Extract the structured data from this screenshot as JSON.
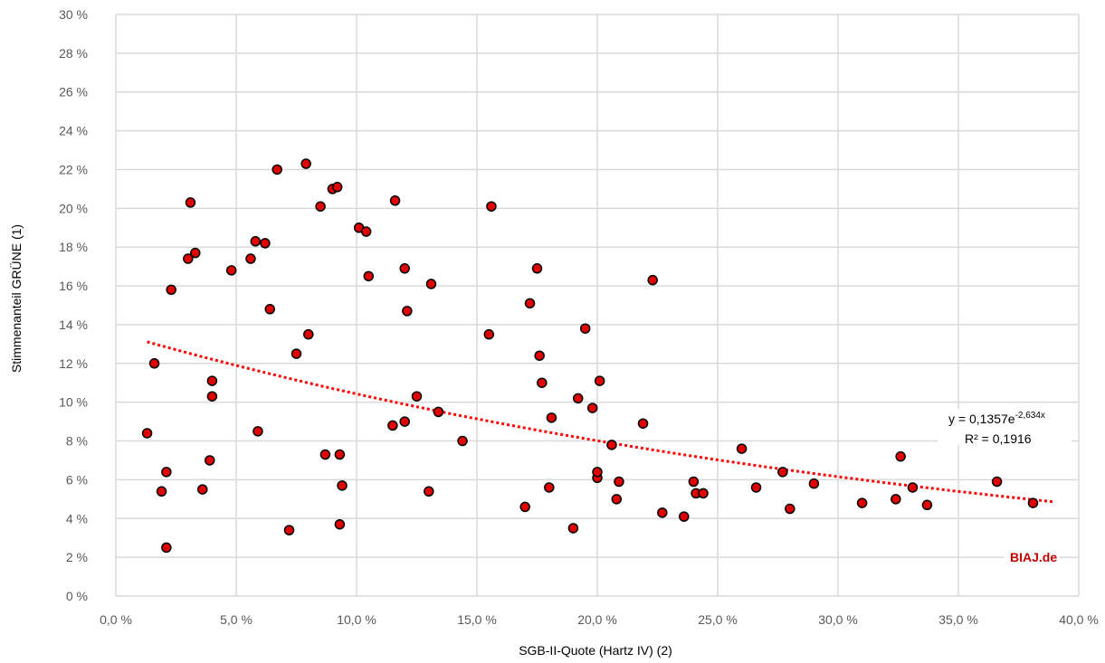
{
  "chart_data": {
    "type": "scatter",
    "title": "",
    "xlabel": "SGB-II-Quote (Hartz IV) (2)",
    "ylabel": "Stimmenanteil GRÜNE (1)",
    "xlim": [
      0,
      40
    ],
    "ylim": [
      0,
      30
    ],
    "x_ticks": [
      "0,0 %",
      "5,0 %",
      "10,0 %",
      "15,0 %",
      "20,0 %",
      "25,0 %",
      "30,0 %",
      "35,0 %",
      "40,0 %"
    ],
    "y_ticks": [
      "0 %",
      "2 %",
      "4 %",
      "6 %",
      "8 %",
      "10 %",
      "12 %",
      "14 %",
      "16 %",
      "18 %",
      "20 %",
      "22 %",
      "24 %",
      "26 %",
      "28 %",
      "30 %"
    ],
    "grid": true,
    "legend": "none",
    "marker_color": "#e00000",
    "marker_edge": "#000000",
    "trend_color": "#ff0000",
    "points": [
      [
        1.3,
        8.4
      ],
      [
        1.6,
        12.0
      ],
      [
        1.9,
        5.4
      ],
      [
        2.1,
        6.4
      ],
      [
        2.1,
        2.5
      ],
      [
        2.3,
        15.8
      ],
      [
        3.0,
        17.4
      ],
      [
        3.1,
        20.3
      ],
      [
        3.3,
        17.7
      ],
      [
        3.6,
        5.5
      ],
      [
        3.9,
        7.0
      ],
      [
        4.0,
        11.1
      ],
      [
        4.0,
        10.3
      ],
      [
        4.8,
        16.8
      ],
      [
        5.6,
        17.4
      ],
      [
        5.8,
        18.3
      ],
      [
        5.9,
        8.5
      ],
      [
        6.2,
        18.2
      ],
      [
        6.4,
        14.8
      ],
      [
        6.7,
        22.0
      ],
      [
        7.2,
        3.4
      ],
      [
        7.5,
        12.5
      ],
      [
        7.9,
        22.3
      ],
      [
        8.0,
        13.5
      ],
      [
        8.5,
        20.1
      ],
      [
        8.7,
        7.3
      ],
      [
        9.0,
        21.0
      ],
      [
        9.2,
        21.1
      ],
      [
        9.3,
        7.3
      ],
      [
        9.3,
        3.7
      ],
      [
        9.4,
        5.7
      ],
      [
        10.1,
        19.0
      ],
      [
        10.4,
        18.8
      ],
      [
        10.5,
        16.5
      ],
      [
        11.5,
        8.8
      ],
      [
        11.6,
        20.4
      ],
      [
        12.0,
        16.9
      ],
      [
        12.0,
        9.0
      ],
      [
        12.1,
        14.7
      ],
      [
        12.5,
        10.3
      ],
      [
        13.0,
        5.4
      ],
      [
        13.1,
        16.1
      ],
      [
        13.4,
        9.5
      ],
      [
        14.4,
        8.0
      ],
      [
        15.5,
        13.5
      ],
      [
        15.6,
        20.1
      ],
      [
        17.0,
        4.6
      ],
      [
        17.2,
        15.1
      ],
      [
        17.5,
        16.9
      ],
      [
        17.6,
        12.4
      ],
      [
        17.7,
        11.0
      ],
      [
        18.0,
        5.6
      ],
      [
        18.1,
        9.2
      ],
      [
        19.0,
        3.5
      ],
      [
        19.2,
        10.2
      ],
      [
        19.5,
        13.8
      ],
      [
        19.8,
        9.7
      ],
      [
        20.0,
        6.1
      ],
      [
        20.0,
        6.4
      ],
      [
        20.1,
        11.1
      ],
      [
        20.6,
        7.8
      ],
      [
        20.8,
        5.0
      ],
      [
        20.9,
        5.9
      ],
      [
        21.9,
        8.9
      ],
      [
        22.3,
        16.3
      ],
      [
        22.7,
        4.3
      ],
      [
        23.6,
        4.1
      ],
      [
        24.0,
        5.9
      ],
      [
        24.1,
        5.3
      ],
      [
        24.4,
        5.3
      ],
      [
        26.0,
        7.6
      ],
      [
        26.6,
        5.6
      ],
      [
        27.7,
        6.4
      ],
      [
        28.0,
        4.5
      ],
      [
        29.0,
        5.8
      ],
      [
        31.0,
        4.8
      ],
      [
        32.4,
        5.0
      ],
      [
        32.6,
        7.2
      ],
      [
        33.1,
        5.6
      ],
      [
        33.7,
        4.7
      ],
      [
        36.6,
        5.9
      ],
      [
        38.1,
        4.8
      ]
    ],
    "trendline": {
      "type": "exponential",
      "a": 0.1357,
      "b": -2.634,
      "x_range": [
        1.3,
        39.0
      ],
      "equation_base": "y = 0,1357e",
      "equation_exponent": "-2,634x",
      "r2": "R² = 0,1916"
    },
    "watermark": "BIAJ.de"
  }
}
